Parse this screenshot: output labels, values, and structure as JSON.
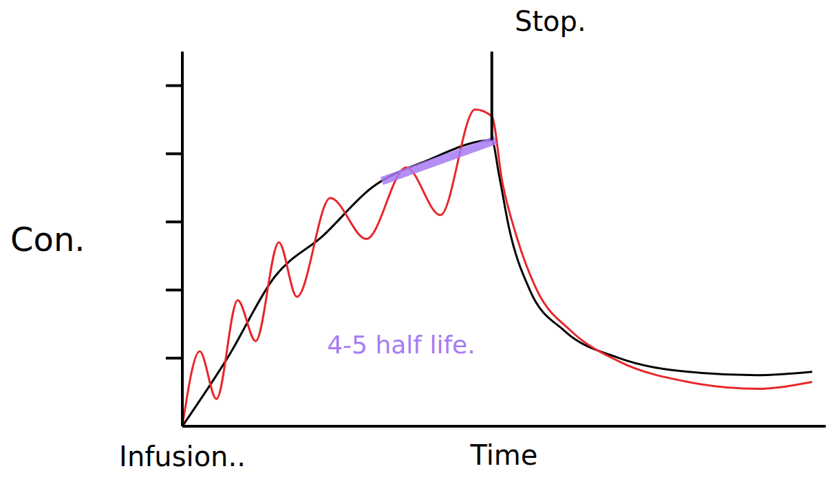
{
  "chart_data": {
    "type": "line",
    "x_label": "Time",
    "y_label": "Con.",
    "xlim": [
      0,
      10
    ],
    "xticks": [],
    "ylim": [
      0,
      5.5
    ],
    "yticks": [
      1,
      2,
      3,
      4,
      5
    ],
    "grid": false,
    "tick_labels": false,
    "series": [
      {
        "color": "#000000",
        "line_style": "solid",
        "marker": "none",
        "x": [
          0,
          0.7,
          1.44,
          2.19,
          2.94,
          3.8,
          4.81,
          4.92,
          5.08,
          5.4,
          5.94,
          6.79,
          7.86,
          8.93,
          9.79
        ],
        "values": [
          0,
          1.0,
          2.2,
          2.8,
          3.5,
          3.9,
          4.2,
          3.7,
          2.9,
          2.0,
          1.4,
          1.0,
          0.8,
          0.75,
          0.8
        ]
      },
      {
        "color": "#e8262a",
        "line_style": "solid",
        "marker": "none",
        "x": [
          0,
          0.27,
          0.53,
          0.86,
          1.14,
          1.5,
          1.78,
          2.3,
          2.86,
          3.48,
          4.01,
          4.55,
          4.81,
          4.97,
          5.19,
          5.51,
          6.04,
          6.79,
          7.86,
          8.93,
          9.79
        ],
        "values": [
          0,
          1.1,
          0.4,
          1.85,
          1.25,
          2.7,
          1.9,
          3.35,
          2.75,
          3.8,
          3.1,
          4.65,
          4.55,
          3.6,
          2.8,
          2.0,
          1.4,
          0.95,
          0.65,
          0.55,
          0.65
        ]
      },
      {
        "color": "#a77bf3",
        "line_style": "thick",
        "marker": "none",
        "x": [
          3.1,
          4.87
        ],
        "values": [
          3.6,
          4.2
        ]
      }
    ],
    "annotations": [
      {
        "text": "Infusion..",
        "x": 0,
        "y": 0
      },
      {
        "text": "Stop.",
        "x": 5.72,
        "y": 5.5
      },
      {
        "text": "4-5 half life.",
        "x": 3.4,
        "y": 1.2,
        "color": "#a77bf3"
      }
    ]
  }
}
